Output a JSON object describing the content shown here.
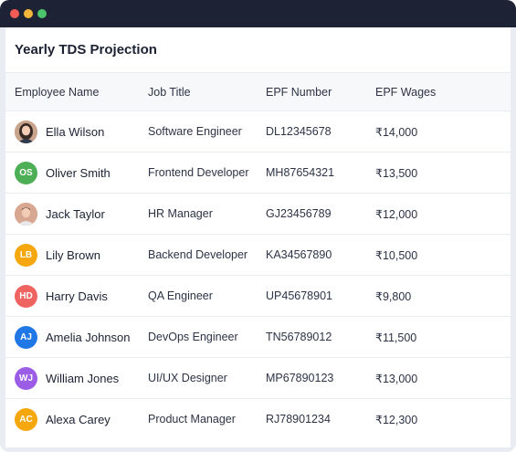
{
  "window": {
    "title": "Yearly TDS Projection"
  },
  "colors": {
    "titlebar": "#1e2235",
    "close": "#f25c54",
    "minimize": "#f5b73b",
    "maximize": "#4cc46b"
  },
  "table": {
    "headers": [
      "Employee Name",
      "Job Title",
      "EPF Number",
      "EPF Wages"
    ],
    "rows": [
      {
        "name": "Ella Wilson",
        "avatar_type": "photo-woman",
        "avatar_color": "#c9a48c",
        "job": "Software Engineer",
        "epf_number": "DL12345678",
        "wages": "₹14,000"
      },
      {
        "name": "Oliver Smith",
        "initials": "OS",
        "avatar_color": "#4cae55",
        "job": "Frontend Developer",
        "epf_number": "MH87654321",
        "wages": "₹13,500"
      },
      {
        "name": "Jack Taylor",
        "avatar_type": "photo-man",
        "avatar_color": "#d7a791",
        "job": "HR Manager",
        "epf_number": "GJ23456789",
        "wages": "₹12,000"
      },
      {
        "name": "Lily Brown",
        "initials": "LB",
        "avatar_color": "#f5a70c",
        "job": "Backend Developer",
        "epf_number": "KA34567890",
        "wages": "₹10,500"
      },
      {
        "name": "Harry Davis",
        "initials": "HD",
        "avatar_color": "#ef6461",
        "job": "QA Engineer",
        "epf_number": "UP45678901",
        "wages": "₹9,800"
      },
      {
        "name": "Amelia Johnson",
        "initials": "AJ",
        "avatar_color": "#1f78e6",
        "job": "DevOps Engineer",
        "epf_number": "TN56789012",
        "wages": "₹11,500"
      },
      {
        "name": "William Jones",
        "initials": "WJ",
        "avatar_color": "#9b5de5",
        "job": "UI/UX Designer",
        "epf_number": "MP67890123",
        "wages": "₹13,000"
      },
      {
        "name": "Alexa Carey",
        "initials": "AC",
        "avatar_color": "#f5a70c",
        "job": "Product Manager",
        "epf_number": "RJ78901234",
        "wages": "₹12,300"
      }
    ]
  }
}
